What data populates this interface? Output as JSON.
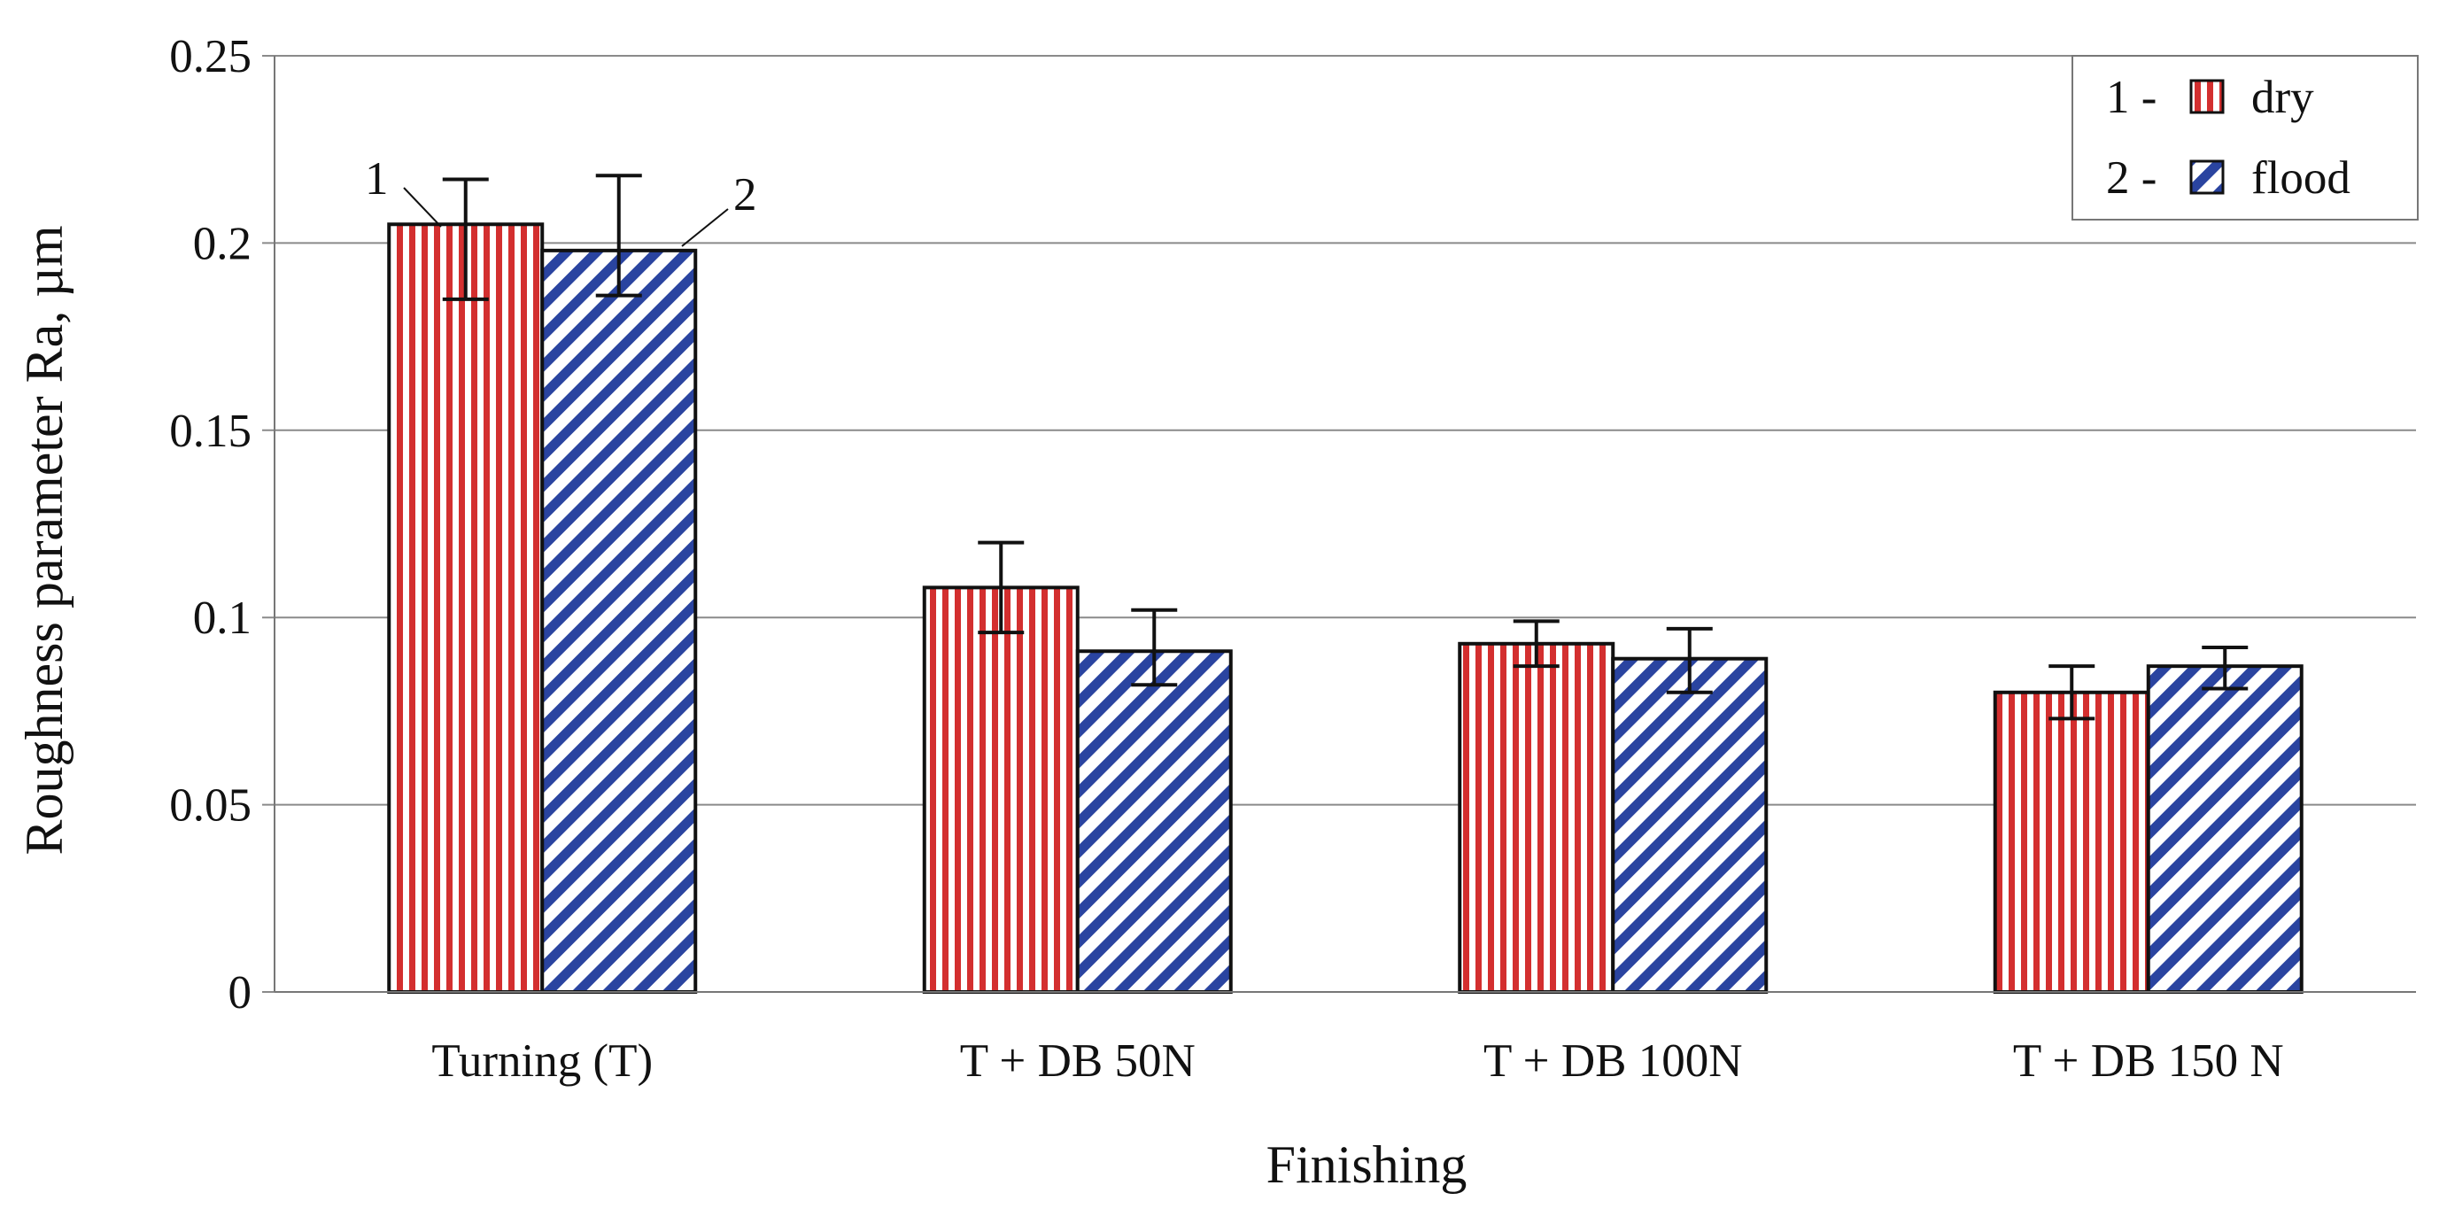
{
  "chart_data": {
    "type": "bar",
    "title": "",
    "xlabel": "Finishing",
    "ylabel": "Roughness parameter Ra, µm",
    "ylim": [
      0,
      0.25
    ],
    "yticks": [
      0,
      0.05,
      0.1,
      0.15,
      0.2,
      0.25
    ],
    "ytick_labels": [
      "0",
      "0.05",
      "0.1",
      "0.15",
      "0.2",
      "0.25"
    ],
    "grid": true,
    "legend_position": "top-right",
    "categories": [
      "Turning (T)",
      "T + DB 50N",
      "T + DB 100N",
      "T + DB 150 N"
    ],
    "series": [
      {
        "name": "dry",
        "number_label": "1 -",
        "callout": "1",
        "color": "#d32f2f",
        "pattern": "vertical-stripes",
        "values": [
          0.205,
          0.108,
          0.093,
          0.08
        ],
        "error_low": [
          0.185,
          0.096,
          0.087,
          0.073
        ],
        "error_high": [
          0.217,
          0.12,
          0.099,
          0.087
        ]
      },
      {
        "name": "flood",
        "number_label": "2 -",
        "callout": "2",
        "color": "#2a44a0",
        "pattern": "diagonal-stripes",
        "values": [
          0.198,
          0.091,
          0.089,
          0.087
        ],
        "error_low": [
          0.186,
          0.082,
          0.08,
          0.081
        ],
        "error_high": [
          0.218,
          0.102,
          0.097,
          0.092
        ]
      }
    ]
  }
}
